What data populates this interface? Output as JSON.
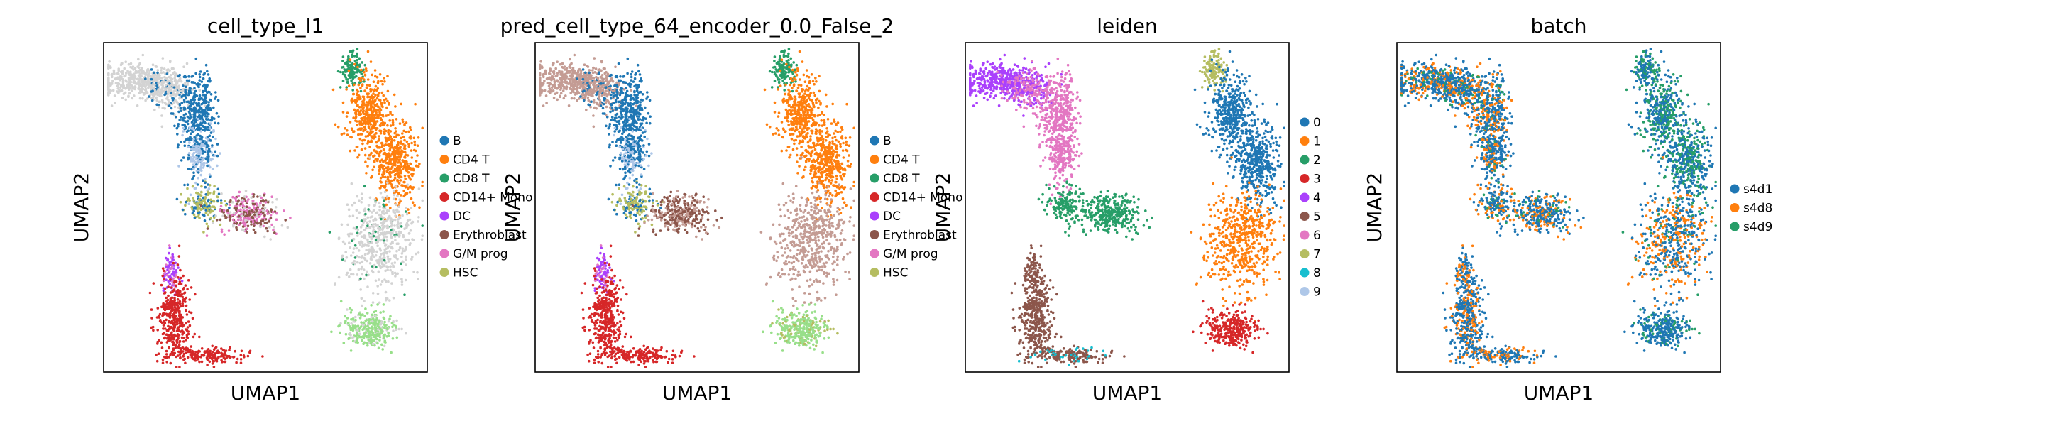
{
  "chart_data": [
    {
      "type": "scatter",
      "title": "cell_type_l1",
      "xlabel": "UMAP1",
      "ylabel": "UMAP2",
      "color_by": "categories",
      "legend": {
        "placement": "right",
        "entries": [
          {
            "name": "B",
            "color": "#1f77b4"
          },
          {
            "name": "CD4 T",
            "color": "#ff7f0e"
          },
          {
            "name": "CD8 T",
            "color": "#279e68"
          },
          {
            "name": "CD14+ Mono",
            "color": "#d62728"
          },
          {
            "name": "DC",
            "color": "#aa40fc"
          },
          {
            "name": "Erythroblast",
            "color": "#8c564b"
          },
          {
            "name": "G/M prog",
            "color": "#e377c2"
          },
          {
            "name": "HSC",
            "color": "#b5bd61"
          }
        ]
      },
      "ticks": false,
      "grid": false
    },
    {
      "type": "scatter",
      "title": "pred_cell_type_64_encoder_0.0_False_2",
      "xlabel": "UMAP1",
      "ylabel": "UMAP2",
      "color_by": "categories",
      "legend": {
        "placement": "right",
        "entries": [
          {
            "name": "B",
            "color": "#1f77b4"
          },
          {
            "name": "CD4 T",
            "color": "#ff7f0e"
          },
          {
            "name": "CD8 T",
            "color": "#279e68"
          },
          {
            "name": "CD14+ Mono",
            "color": "#d62728"
          },
          {
            "name": "DC",
            "color": "#aa40fc"
          },
          {
            "name": "Erythroblast",
            "color": "#8c564b"
          },
          {
            "name": "G/M prog",
            "color": "#e377c2"
          },
          {
            "name": "HSC",
            "color": "#b5bd61"
          }
        ]
      },
      "ticks": false,
      "grid": false
    },
    {
      "type": "scatter",
      "title": "leiden",
      "xlabel": "UMAP1",
      "ylabel": "UMAP2",
      "color_by": "clusters",
      "legend": {
        "placement": "right",
        "entries": [
          {
            "name": "0",
            "color": "#1f77b4"
          },
          {
            "name": "1",
            "color": "#ff7f0e"
          },
          {
            "name": "2",
            "color": "#279e68"
          },
          {
            "name": "3",
            "color": "#d62728"
          },
          {
            "name": "4",
            "color": "#aa40fc"
          },
          {
            "name": "5",
            "color": "#8c564b"
          },
          {
            "name": "6",
            "color": "#e377c2"
          },
          {
            "name": "7",
            "color": "#b5bd61"
          },
          {
            "name": "8",
            "color": "#17becf"
          },
          {
            "name": "9",
            "color": "#aec7e8"
          }
        ]
      },
      "ticks": false,
      "grid": false
    },
    {
      "type": "scatter",
      "title": "batch",
      "xlabel": "UMAP1",
      "ylabel": "UMAP2",
      "color_by": "batch",
      "legend": {
        "placement": "right",
        "entries": [
          {
            "name": "s4d1",
            "color": "#1f77b4"
          },
          {
            "name": "s4d8",
            "color": "#ff7f0e"
          },
          {
            "name": "s4d9",
            "color": "#279e68"
          }
        ]
      },
      "ticks": false,
      "grid": false
    }
  ],
  "colors": {
    "unlabeled": "#d3d3d3",
    "pred_unlabeled": "#c49c94",
    "hsc_light": "#98df8a"
  }
}
